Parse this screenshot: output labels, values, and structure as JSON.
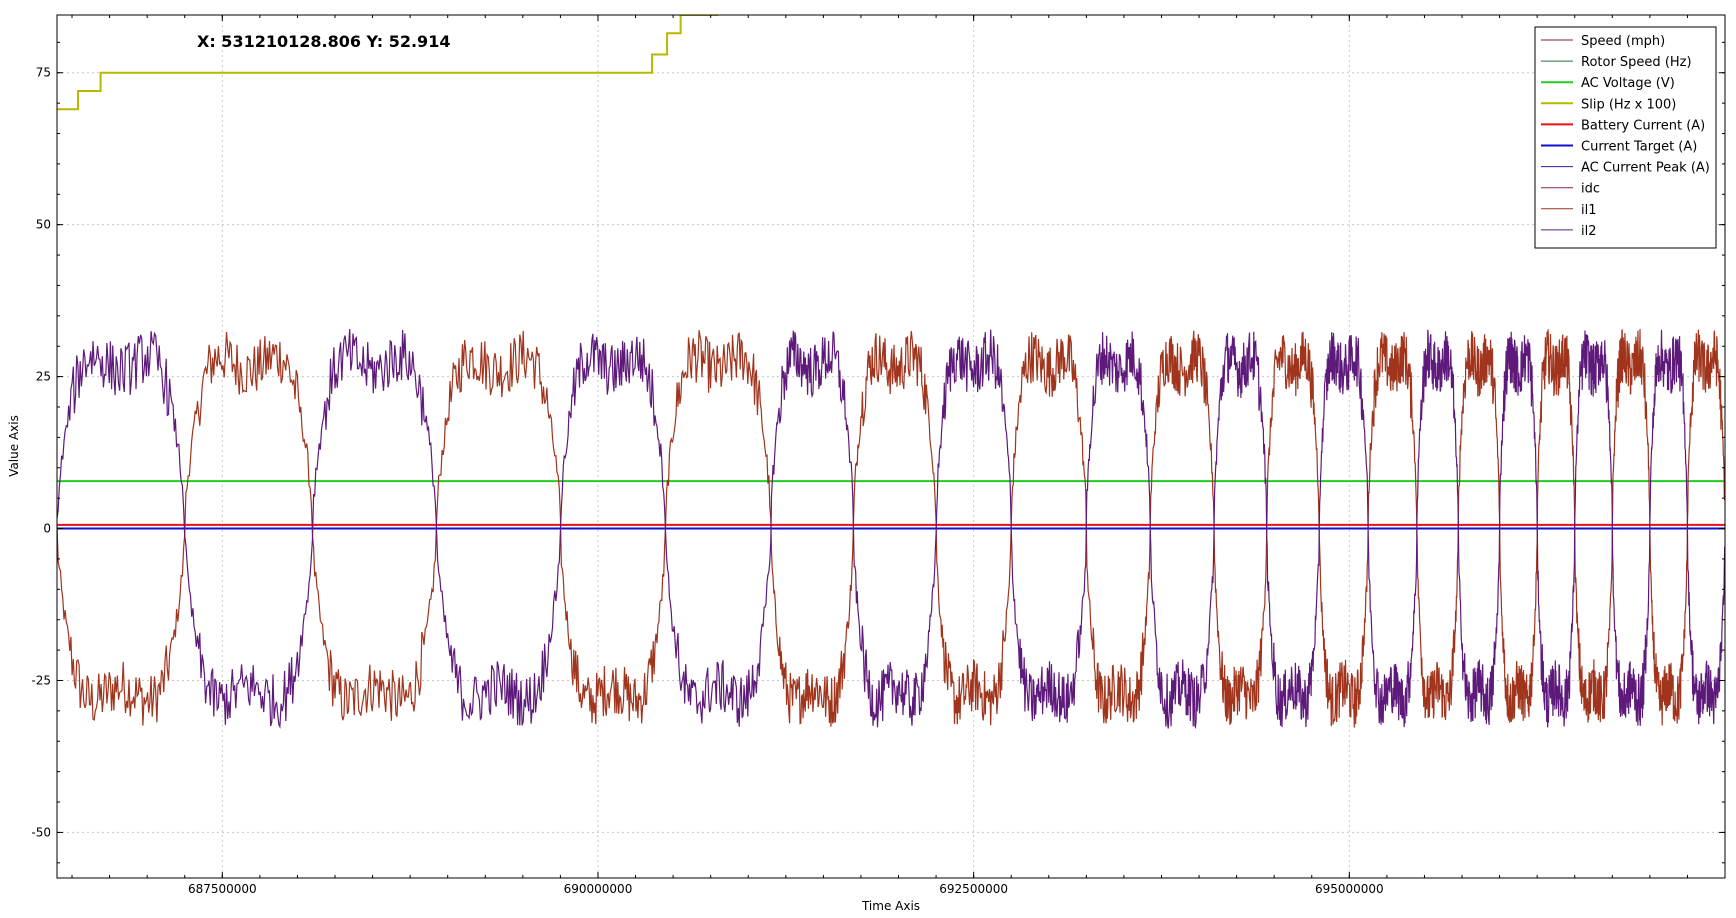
{
  "chart_data": {
    "type": "line",
    "cursor_readout": "X: 531210128.806 Y: 52.914",
    "xlabel": "Time Axis",
    "ylabel": "Value Axis",
    "xlim": [
      686400000,
      697500000
    ],
    "ylim": [
      -57.5,
      84.5
    ],
    "x_ticks": [
      687500000,
      690000000,
      692500000,
      695000000
    ],
    "x_tick_labels": [
      "687500000",
      "690000000",
      "692500000",
      "695000000"
    ],
    "y_ticks": [
      -50,
      -25,
      0,
      25,
      50,
      75
    ],
    "y_tick_labels": [
      "-50",
      "-25",
      "0",
      "25",
      "50",
      "75"
    ],
    "grid": true,
    "legend_position": "top-right",
    "legend": [
      {
        "name": "Speed (mph)",
        "color": "#7a1f3d",
        "width": 1
      },
      {
        "name": "Rotor Speed (Hz)",
        "color": "#1f6f3d",
        "width": 1
      },
      {
        "name": "AC Voltage (V)",
        "color": "#22cc22",
        "width": 2
      },
      {
        "name": "Slip (Hz x 100)",
        "color": "#b8b800",
        "width": 2
      },
      {
        "name": "Battery Current (A)",
        "color": "#ee1111",
        "width": 2
      },
      {
        "name": "Current Target (A)",
        "color": "#1111cc",
        "width": 2
      },
      {
        "name": "AC Current Peak (A)",
        "color": "#222299",
        "width": 1
      },
      {
        "name": "idc",
        "color": "#8b2252",
        "width": 1
      },
      {
        "name": "il1",
        "color": "#a0341c",
        "width": 1
      },
      {
        "name": "il2",
        "color": "#5e1a7a",
        "width": 1
      }
    ],
    "series": [
      {
        "name": "AC Voltage (V)",
        "color": "#22cc22",
        "constant": 7.8
      },
      {
        "name": "Battery Current (A)",
        "color": "#ee1111",
        "constant": 0.6
      },
      {
        "name": "Current Target (A)",
        "color": "#1111cc",
        "constant": 0.0
      },
      {
        "name": "Slip (Hz x 100)",
        "color": "#b8b800",
        "step": true,
        "x": [
          686400000,
          686540000,
          686540000,
          686690000,
          686690000,
          690360000,
          690360000,
          690460000,
          690460000,
          690550000,
          690550000,
          690800000
        ],
        "y": [
          69,
          69,
          72,
          72,
          75,
          75,
          78,
          78,
          81.5,
          81.5,
          84.5,
          84.5
        ]
      },
      {
        "name": "il1",
        "color": "#a0341c",
        "waveform": true,
        "amplitude": 37,
        "phase_offset": 0.5,
        "cycles": [
          [
            686400000,
            688100000
          ],
          [
            688100000,
            689750000
          ],
          [
            689750000,
            691150000
          ],
          [
            691150000,
            692250000
          ],
          [
            692250000,
            693250000
          ],
          [
            693250000,
            694100000
          ],
          [
            694100000,
            694800000
          ],
          [
            694800000,
            695450000
          ],
          [
            695450000,
            696000000
          ],
          [
            696000000,
            696500000
          ],
          [
            696500000,
            697000000
          ],
          [
            697000000,
            697500000
          ]
        ]
      },
      {
        "name": "il2",
        "color": "#5e1a7a",
        "waveform": true,
        "amplitude": 37,
        "phase_offset": 0.0,
        "cycles": [
          [
            686400000,
            688100000
          ],
          [
            688100000,
            689750000
          ],
          [
            689750000,
            691150000
          ],
          [
            691150000,
            692250000
          ],
          [
            692250000,
            693250000
          ],
          [
            693250000,
            694100000
          ],
          [
            694100000,
            694800000
          ],
          [
            694800000,
            695450000
          ],
          [
            695450000,
            696000000
          ],
          [
            696000000,
            696500000
          ],
          [
            696500000,
            697000000
          ],
          [
            697000000,
            697500000
          ]
        ]
      }
    ]
  }
}
